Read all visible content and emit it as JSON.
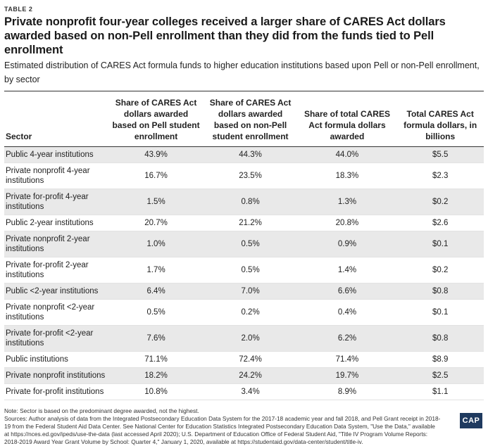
{
  "table_tag": "TABLE 2",
  "title": "Private nonprofit four-year colleges received a larger share of CARES Act dollars awarded based on non-Pell enrollment than they did from the funds tied to Pell enrollment",
  "subtitle": "Estimated distribution of CARES Act formula funds to higher education institutions based upon Pell or non-Pell enrollment, by sector",
  "columns": [
    "Sector",
    "Share of CARES Act dollars awarded based on Pell student enrollment",
    "Share of CARES Act dollars awarded based on non-Pell student enrollment",
    "Share of total CARES Act formula dollars awarded",
    "Total CARES Act formula dollars, in billions"
  ],
  "rows": [
    {
      "sector": "Public 4-year institutions",
      "pell": "43.9%",
      "nonpell": "44.3%",
      "total_share": "44.0%",
      "dollars": "$5.5"
    },
    {
      "sector": "Private nonprofit 4-year institutions",
      "pell": "16.7%",
      "nonpell": "23.5%",
      "total_share": "18.3%",
      "dollars": "$2.3"
    },
    {
      "sector": "Private for-profit 4-year institutions",
      "pell": "1.5%",
      "nonpell": "0.8%",
      "total_share": "1.3%",
      "dollars": "$0.2"
    },
    {
      "sector": "Public 2-year institutions",
      "pell": "20.7%",
      "nonpell": "21.2%",
      "total_share": "20.8%",
      "dollars": "$2.6"
    },
    {
      "sector": "Private nonprofit 2-year institutions",
      "pell": "1.0%",
      "nonpell": "0.5%",
      "total_share": "0.9%",
      "dollars": "$0.1"
    },
    {
      "sector": "Private for-profit 2-year institutions",
      "pell": "1.7%",
      "nonpell": "0.5%",
      "total_share": "1.4%",
      "dollars": "$0.2"
    },
    {
      "sector": "Public <2-year institutions",
      "pell": "6.4%",
      "nonpell": "7.0%",
      "total_share": "6.6%",
      "dollars": "$0.8"
    },
    {
      "sector": "Private nonprofit <2-year institutions",
      "pell": "0.5%",
      "nonpell": "0.2%",
      "total_share": "0.4%",
      "dollars": "$0.1"
    },
    {
      "sector": "Private for-profit <2-year institutions",
      "pell": "7.6%",
      "nonpell": "2.0%",
      "total_share": "6.2%",
      "dollars": "$0.8"
    },
    {
      "sector": "Public institutions",
      "pell": "71.1%",
      "nonpell": "72.4%",
      "total_share": "71.4%",
      "dollars": "$8.9"
    },
    {
      "sector": "Private nonprofit institutions",
      "pell": "18.2%",
      "nonpell": "24.2%",
      "total_share": "19.7%",
      "dollars": "$2.5"
    },
    {
      "sector": "Private for-profit institutions",
      "pell": "10.8%",
      "nonpell": "3.4%",
      "total_share": "8.9%",
      "dollars": "$1.1"
    }
  ],
  "note": "Note: Sector is based on the predominant degree awarded, not the highest.",
  "sources": "Sources: Author analysis of data from the Integrated Postsecondary Education Data System for the 2017-18 academic year and fall 2018, and Pell Grant receipt in 2018-19 from the Federal Student Aid Data Center. See National Center for Education Statistics Integrated Postsecondary Education Data System, \"Use the Data,\" available at https://nces.ed.gov/ipeds/use-the-data (last accessed April 2020); U.S. Department of Education Office of Federal Student Aid, \"Title IV Program Volume Reports: 2018-2019 Award Year Grant Volume by School: Quarter 4,\" January 1, 2020, available at https://studentaid.gov/data-center/student/title-iv.",
  "logo_text": "CAP"
}
